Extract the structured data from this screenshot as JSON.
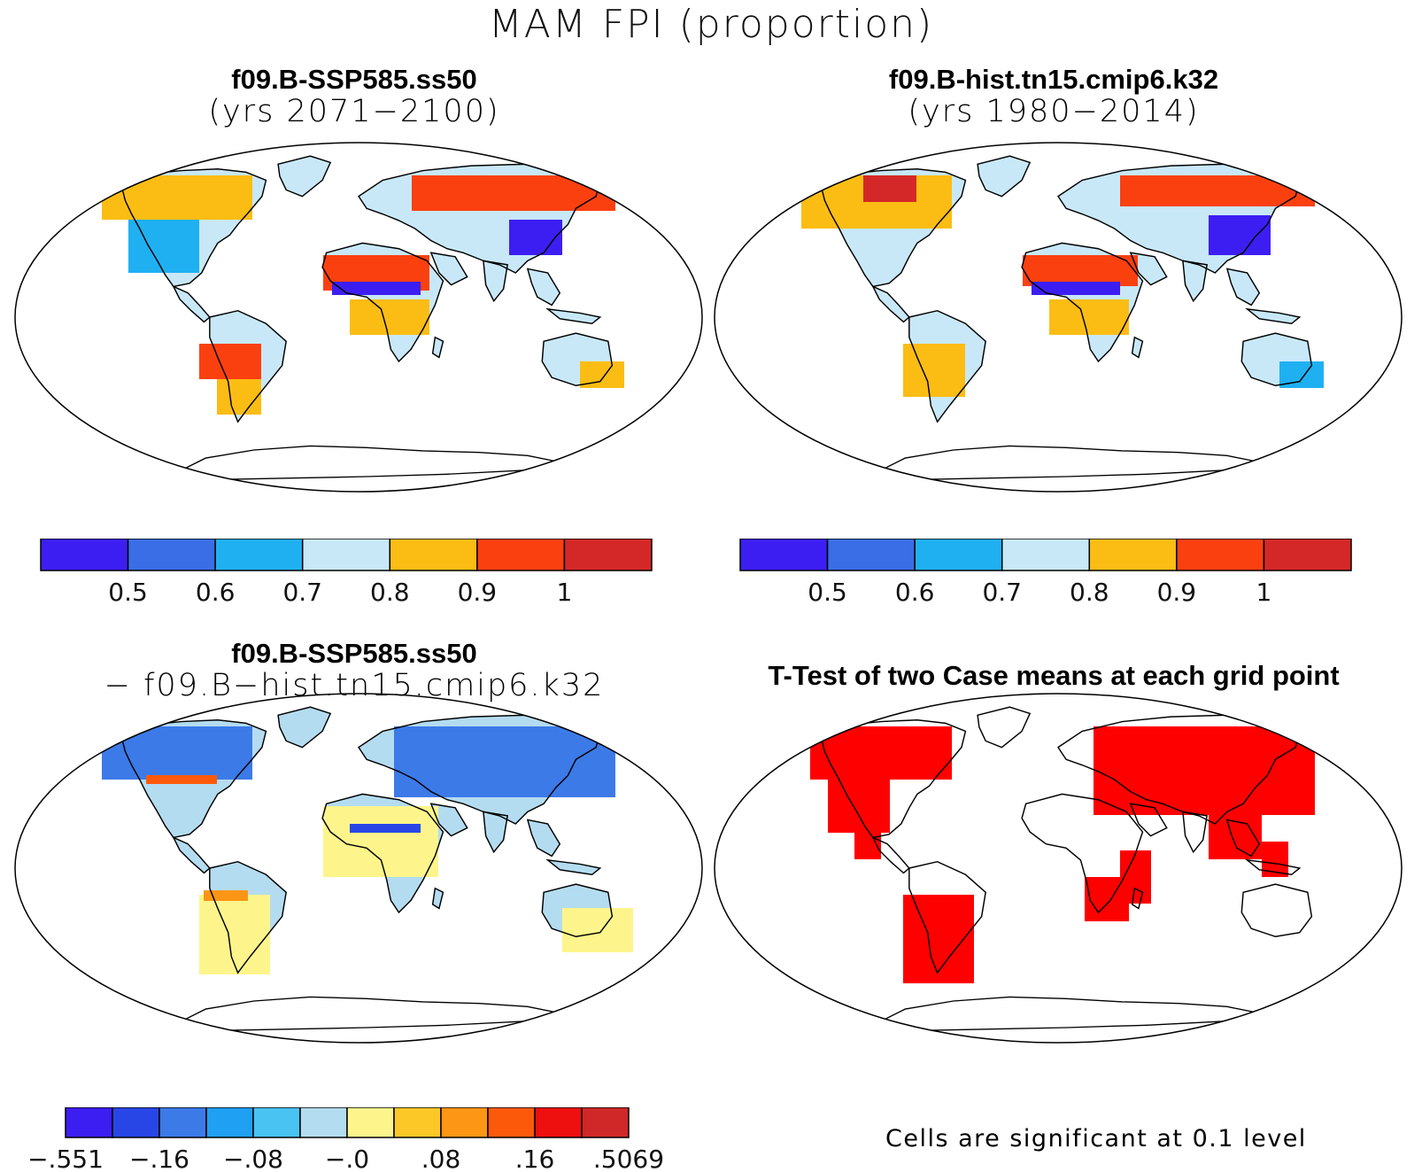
{
  "title": "MAM FPI (proportion)",
  "panels": [
    {
      "id": "ssp",
      "title_line1": "f09.B-SSP585.ss50",
      "title_line2": "(yrs 2071−2100)"
    },
    {
      "id": "hist",
      "title_line1": "f09.B-hist.tn15.cmip6.k32",
      "title_line2": "(yrs 1980−2014)"
    },
    {
      "id": "diff",
      "title_line1": "f09.B-SSP585.ss50",
      "title_line2": "− f09.B−hist.tn15.cmip6.k32"
    },
    {
      "id": "ttest",
      "title_line1": "T-Test of two Case means at each grid point",
      "title_line2": ""
    }
  ],
  "colorbars": {
    "abs": {
      "colors": [
        "#3c1ef2",
        "#3a6ee6",
        "#1fb0f2",
        "#c8e8f8",
        "#fbbd14",
        "#fb4010",
        "#d42828"
      ],
      "labels": [
        "0.5",
        "0.6",
        "0.7",
        "0.8",
        "0.9",
        "1"
      ]
    },
    "diff": {
      "colors": [
        "#3c1ef2",
        "#2846e6",
        "#3c7ae8",
        "#1fa0f2",
        "#49c3f2",
        "#b4dcf0",
        "#fdf58c",
        "#fcc828",
        "#fc9614",
        "#fc5a0a",
        "#ee0f0f",
        "#d02828"
      ],
      "labels": [
        "−.551",
        "−.16",
        "−.08",
        "−.0",
        ".08",
        ".16",
        ".5069"
      ]
    }
  },
  "significance_note": "Cells are significant at 0.1 level",
  "significance_color": "#ff0000"
}
